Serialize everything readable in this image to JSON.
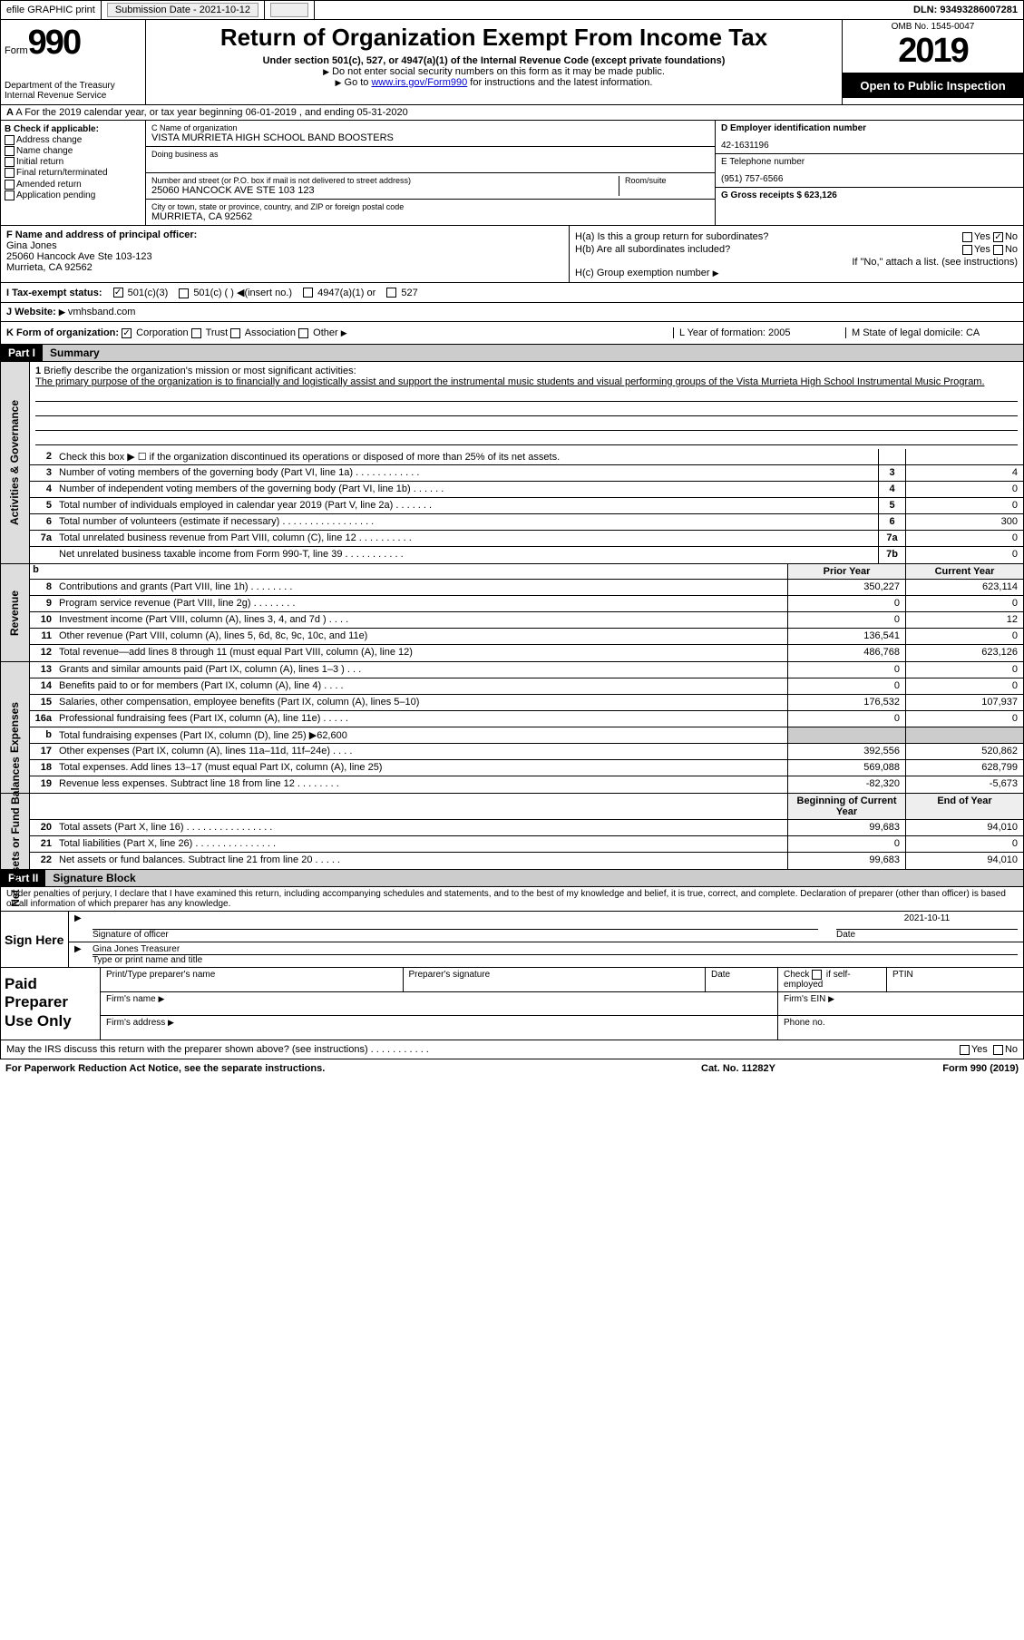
{
  "topbar": {
    "efile": "efile GRAPHIC print",
    "submission_label": "Submission Date - 2021-10-12",
    "dln": "DLN: 93493286007281"
  },
  "header": {
    "form_label": "Form",
    "form_num": "990",
    "dept": "Department of the Treasury",
    "irs": "Internal Revenue Service",
    "title": "Return of Organization Exempt From Income Tax",
    "subtitle": "Under section 501(c), 527, or 4947(a)(1) of the Internal Revenue Code (except private foundations)",
    "note1": "Do not enter social security numbers on this form as it may be made public.",
    "note2_pre": "Go to ",
    "note2_link": "www.irs.gov/Form990",
    "note2_post": " for instructions and the latest information.",
    "omb": "OMB No. 1545-0047",
    "year": "2019",
    "open": "Open to Public Inspection"
  },
  "row_a": "A For the 2019 calendar year, or tax year beginning 06-01-2019    , and ending 05-31-2020",
  "col_b": {
    "label": "B Check if applicable:",
    "items": [
      "Address change",
      "Name change",
      "Initial return",
      "Final return/terminated",
      "Amended return",
      "Application pending"
    ]
  },
  "col_c": {
    "name_lbl": "C Name of organization",
    "name": "VISTA MURRIETA HIGH SCHOOL BAND BOOSTERS",
    "dba_lbl": "Doing business as",
    "dba": "",
    "addr_lbl": "Number and street (or P.O. box if mail is not delivered to street address)",
    "room_lbl": "Room/suite",
    "addr": "25060 HANCOCK AVE STE 103 123",
    "city_lbl": "City or town, state or province, country, and ZIP or foreign postal code",
    "city": "MURRIETA, CA  92562"
  },
  "col_d": {
    "ein_lbl": "D Employer identification number",
    "ein": "42-1631196",
    "tel_lbl": "E Telephone number",
    "tel": "(951) 757-6566",
    "gross_lbl": "G Gross receipts $ 623,126"
  },
  "f": {
    "lbl": "F  Name and address of principal officer:",
    "name": "Gina Jones",
    "addr1": "25060 Hancock Ave Ste 103-123",
    "addr2": "Murrieta, CA  92562"
  },
  "h": {
    "a": "H(a)  Is this a group return for subordinates?",
    "a_yes": "Yes",
    "a_no": "No",
    "b": "H(b)  Are all subordinates included?",
    "b_yes": "Yes",
    "b_no": "No",
    "b_note": "If \"No,\" attach a list. (see instructions)",
    "c": "H(c)  Group exemption number"
  },
  "row_i": {
    "lbl": "I    Tax-exempt status:",
    "o1": "501(c)(3)",
    "o2": "501(c) (   )",
    "o2b": "(insert no.)",
    "o3": "4947(a)(1) or",
    "o4": "527"
  },
  "row_j": {
    "lbl": "J   Website:",
    "val": "vmhsband.com"
  },
  "row_k": {
    "lbl": "K Form of organization:",
    "o1": "Corporation",
    "o2": "Trust",
    "o3": "Association",
    "o4": "Other",
    "l_lbl": "L Year of formation: 2005",
    "m_lbl": "M State of legal domicile: CA"
  },
  "part1": {
    "hdr": "Part I",
    "title": "Summary"
  },
  "mission": {
    "num": "1",
    "lbl": "Briefly describe the organization's mission or most significant activities:",
    "text": "The primary purpose of the organization is to financially and logistically assist and support the instrumental music students and visual performing groups of the Vista Murrieta High School Instrumental Music Program."
  },
  "gov_lines": [
    {
      "n": "2",
      "d": "Check this box ▶ ☐  if the organization discontinued its operations or disposed of more than 25% of its net assets.",
      "b": "",
      "v": ""
    },
    {
      "n": "3",
      "d": "Number of voting members of the governing body (Part VI, line 1a)  .  .  .  .  .  .  .  .  .  .  .  .",
      "b": "3",
      "v": "4"
    },
    {
      "n": "4",
      "d": "Number of independent voting members of the governing body (Part VI, line 1b)  .  .  .  .  .  .",
      "b": "4",
      "v": "0"
    },
    {
      "n": "5",
      "d": "Total number of individuals employed in calendar year 2019 (Part V, line 2a)  .  .  .  .  .  .  .",
      "b": "5",
      "v": "0"
    },
    {
      "n": "6",
      "d": "Total number of volunteers (estimate if necessary)  .  .  .  .  .  .  .  .  .  .  .  .  .  .  .  .  .",
      "b": "6",
      "v": "300"
    },
    {
      "n": "7a",
      "d": "Total unrelated business revenue from Part VIII, column (C), line 12   .  .  .  .  .  .  .  .  .  .",
      "b": "7a",
      "v": "0"
    },
    {
      "n": "",
      "d": "Net unrelated business taxable income from Form 990-T, line 39  .  .  .  .  .  .  .  .  .  .  .",
      "b": "7b",
      "v": "0"
    }
  ],
  "col_hdrs": {
    "py": "Prior Year",
    "cy": "Current Year"
  },
  "revenue_lines": [
    {
      "n": "8",
      "d": "Contributions and grants (Part VIII, line 1h)  .  .  .  .  .  .  .  .",
      "py": "350,227",
      "cy": "623,114"
    },
    {
      "n": "9",
      "d": "Program service revenue (Part VIII, line 2g)  .  .  .  .  .  .  .  .",
      "py": "0",
      "cy": "0"
    },
    {
      "n": "10",
      "d": "Investment income (Part VIII, column (A), lines 3, 4, and 7d )  .  .  .  .",
      "py": "0",
      "cy": "12"
    },
    {
      "n": "11",
      "d": "Other revenue (Part VIII, column (A), lines 5, 6d, 8c, 9c, 10c, and 11e)",
      "py": "136,541",
      "cy": "0"
    },
    {
      "n": "12",
      "d": "Total revenue—add lines 8 through 11 (must equal Part VIII, column (A), line 12)",
      "py": "486,768",
      "cy": "623,126"
    }
  ],
  "expense_lines": [
    {
      "n": "13",
      "d": "Grants and similar amounts paid (Part IX, column (A), lines 1–3 )  .  .  .",
      "py": "0",
      "cy": "0"
    },
    {
      "n": "14",
      "d": "Benefits paid to or for members (Part IX, column (A), line 4)  .  .  .  .",
      "py": "0",
      "cy": "0"
    },
    {
      "n": "15",
      "d": "Salaries, other compensation, employee benefits (Part IX, column (A), lines 5–10)",
      "py": "176,532",
      "cy": "107,937"
    },
    {
      "n": "16a",
      "d": "Professional fundraising fees (Part IX, column (A), line 11e)  .  .  .  .  .",
      "py": "0",
      "cy": "0"
    },
    {
      "n": "b",
      "d": "Total fundraising expenses (Part IX, column (D), line 25) ▶62,600",
      "py": "",
      "cy": "",
      "shade": true
    },
    {
      "n": "17",
      "d": "Other expenses (Part IX, column (A), lines 11a–11d, 11f–24e)  .  .  .  .",
      "py": "392,556",
      "cy": "520,862"
    },
    {
      "n": "18",
      "d": "Total expenses. Add lines 13–17 (must equal Part IX, column (A), line 25)",
      "py": "569,088",
      "cy": "628,799"
    },
    {
      "n": "19",
      "d": "Revenue less expenses. Subtract line 18 from line 12  .  .  .  .  .  .  .  .",
      "py": "-82,320",
      "cy": "-5,673"
    }
  ],
  "na_hdrs": {
    "py": "Beginning of Current Year",
    "cy": "End of Year"
  },
  "na_lines": [
    {
      "n": "20",
      "d": "Total assets (Part X, line 16)  .  .  .  .  .  .  .  .  .  .  .  .  .  .  .  .",
      "py": "99,683",
      "cy": "94,010"
    },
    {
      "n": "21",
      "d": "Total liabilities (Part X, line 26)  .  .  .  .  .  .  .  .  .  .  .  .  .  .  .",
      "py": "0",
      "cy": "0"
    },
    {
      "n": "22",
      "d": "Net assets or fund balances. Subtract line 21 from line 20  .  .  .  .  .",
      "py": "99,683",
      "cy": "94,010"
    }
  ],
  "part2": {
    "hdr": "Part II",
    "title": "Signature Block"
  },
  "penalty": "Under penalties of perjury, I declare that I have examined this return, including accompanying schedules and statements, and to the best of my knowledge and belief, it is true, correct, and complete. Declaration of preparer (other than officer) is based on all information of which preparer has any knowledge.",
  "sign": {
    "here": "Sign Here",
    "sig_lbl": "Signature of officer",
    "date_lbl": "Date",
    "date": "2021-10-11",
    "name": "Gina Jones Treasurer",
    "name_lbl": "Type or print name and title"
  },
  "prep": {
    "title": "Paid Preparer Use Only",
    "c1": "Print/Type preparer's name",
    "c2": "Preparer's signature",
    "c3": "Date",
    "c4a": "Check",
    "c4b": "if self-employed",
    "c5": "PTIN",
    "firm_name": "Firm's name",
    "firm_ein": "Firm's EIN",
    "firm_addr": "Firm's address",
    "phone": "Phone no."
  },
  "footer": {
    "discuss": "May the IRS discuss this return with the preparer shown above? (see instructions)   .  .  .  .  .  .  .  .  .  .  .",
    "yes": "Yes",
    "no": "No"
  },
  "bottom": {
    "pra": "For Paperwork Reduction Act Notice, see the separate instructions.",
    "cat": "Cat. No. 11282Y",
    "form": "Form 990 (2019)"
  },
  "vtabs": {
    "gov": "Activities & Governance",
    "rev": "Revenue",
    "exp": "Expenses",
    "na": "Net Assets or Fund Balances"
  }
}
